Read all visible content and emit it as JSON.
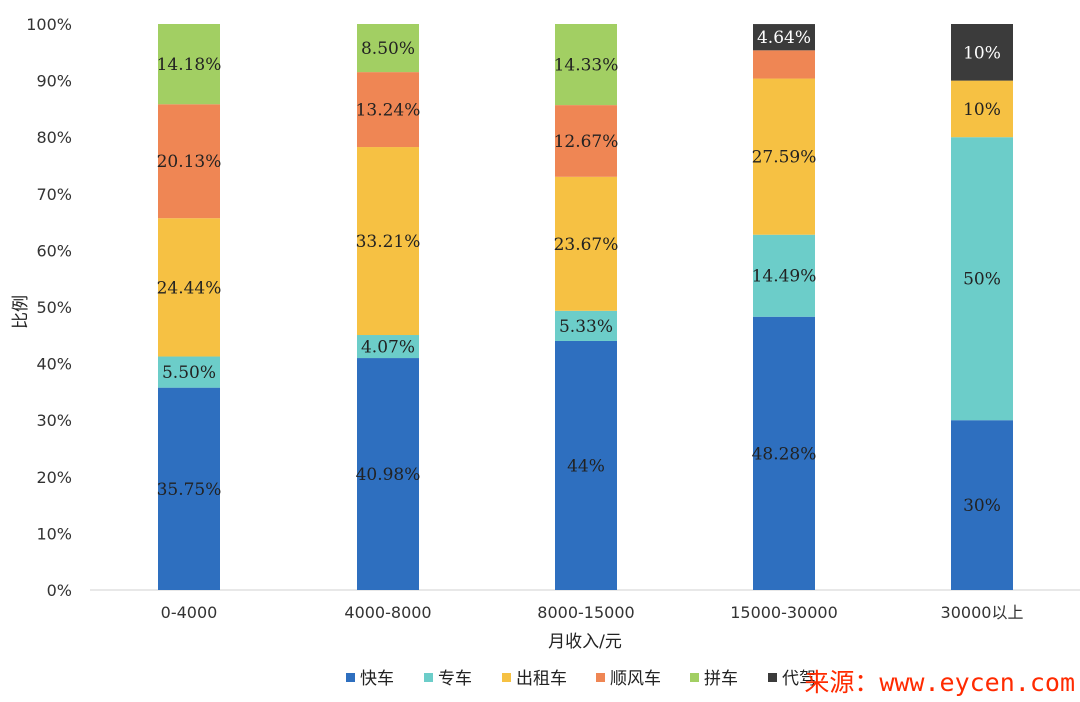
{
  "chart_data": {
    "type": "bar",
    "stacked": true,
    "categories": [
      "0-4000",
      "4000-8000",
      "8000-15000",
      "15000-30000",
      "30000以上"
    ],
    "xlabel": "月收入/元",
    "ylabel": "比例",
    "ylim": [
      0,
      100
    ],
    "yticks": [
      "0%",
      "10%",
      "20%",
      "30%",
      "40%",
      "50%",
      "60%",
      "70%",
      "80%",
      "90%",
      "100%"
    ],
    "grid": false,
    "legend_position": "bottom",
    "series": [
      {
        "name": "快车",
        "color": "#2e6fbf",
        "values": [
          35.75,
          40.98,
          44,
          48.28,
          30
        ],
        "labels": [
          "35.75%",
          "40.98%",
          "44%",
          "48.28%",
          "30%"
        ]
      },
      {
        "name": "专车",
        "color": "#6ccdc9",
        "values": [
          5.5,
          4.07,
          5.33,
          14.49,
          50
        ],
        "labels": [
          "5.50%",
          "4.07%",
          "5.33%",
          "14.49%",
          "50%"
        ]
      },
      {
        "name": "出租车",
        "color": "#f6c143",
        "values": [
          24.44,
          33.21,
          23.67,
          27.59,
          10
        ],
        "labels": [
          "24.44%",
          "33.21%",
          "23.67%",
          "27.59%",
          "10%"
        ]
      },
      {
        "name": "顺风车",
        "color": "#ef8654",
        "values": [
          20.13,
          13.24,
          12.67,
          4.99,
          0
        ],
        "labels": [
          "20.13%",
          "13.24%",
          "12.67%",
          "",
          ""
        ]
      },
      {
        "name": "拼车",
        "color": "#a2cf63",
        "values": [
          14.18,
          8.5,
          14.33,
          0,
          0
        ],
        "labels": [
          "14.18%",
          "8.50%",
          "14.33%",
          "",
          ""
        ]
      },
      {
        "name": "代驾",
        "color": "#3b3b3b",
        "values": [
          0,
          0,
          0,
          4.64,
          10
        ],
        "labels": [
          "",
          "",
          "",
          "4.64%",
          "10%"
        ]
      }
    ]
  },
  "watermark": "来源：www.eycen.com"
}
